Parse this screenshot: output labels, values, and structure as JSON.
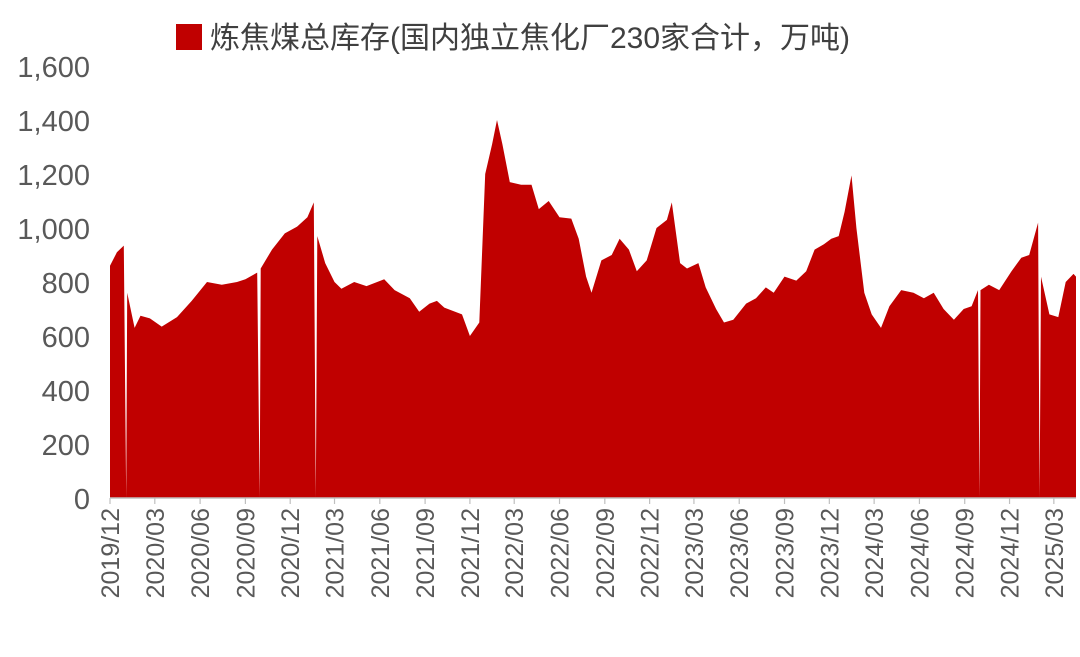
{
  "chart_data": {
    "type": "area",
    "title": "",
    "xlabel": "",
    "ylabel": "",
    "legend": {
      "position": "top-center"
    },
    "grid": false,
    "ylim": [
      0,
      1600
    ],
    "y_ticks": [
      "0",
      "200",
      "400",
      "600",
      "800",
      "1,000",
      "1,200",
      "1,400",
      "1,600"
    ],
    "x_ticks": [
      "2019/12",
      "2020/03",
      "2020/06",
      "2020/09",
      "2020/12",
      "2021/03",
      "2021/06",
      "2021/09",
      "2021/12",
      "2022/03",
      "2022/06",
      "2022/09",
      "2022/12",
      "2023/03",
      "2023/06",
      "2023/09",
      "2023/12",
      "2024/03",
      "2024/06",
      "2024/09",
      "2024/12",
      "2025/03"
    ],
    "x_range": [
      "2019-12-01",
      "2025-04-15"
    ],
    "series": [
      {
        "name": "炼焦煤总库存(国内独立焦化厂230家合计，万吨)",
        "color": "#C00000",
        "points": [
          [
            "2019-12-01",
            860
          ],
          [
            "2019-12-15",
            910
          ],
          [
            "2019-12-29",
            935
          ],
          [
            "2020-01-03",
            0
          ],
          [
            "2020-01-05",
            760
          ],
          [
            "2020-01-20",
            630
          ],
          [
            "2020-02-01",
            675
          ],
          [
            "2020-02-20",
            665
          ],
          [
            "2020-03-15",
            635
          ],
          [
            "2020-04-15",
            670
          ],
          [
            "2020-05-15",
            730
          ],
          [
            "2020-06-15",
            800
          ],
          [
            "2020-07-15",
            790
          ],
          [
            "2020-08-15",
            800
          ],
          [
            "2020-09-01",
            810
          ],
          [
            "2020-09-25",
            835
          ],
          [
            "2020-09-30",
            0
          ],
          [
            "2020-10-02",
            850
          ],
          [
            "2020-10-25",
            920
          ],
          [
            "2020-11-20",
            980
          ],
          [
            "2020-12-15",
            1005
          ],
          [
            "2021-01-05",
            1040
          ],
          [
            "2021-01-18",
            1095
          ],
          [
            "2021-01-22",
            0
          ],
          [
            "2021-01-25",
            970
          ],
          [
            "2021-02-10",
            870
          ],
          [
            "2021-03-01",
            800
          ],
          [
            "2021-03-15",
            775
          ],
          [
            "2021-04-10",
            800
          ],
          [
            "2021-05-05",
            785
          ],
          [
            "2021-06-10",
            810
          ],
          [
            "2021-07-01",
            770
          ],
          [
            "2021-08-01",
            740
          ],
          [
            "2021-08-20",
            690
          ],
          [
            "2021-09-10",
            720
          ],
          [
            "2021-09-25",
            730
          ],
          [
            "2021-10-10",
            705
          ],
          [
            "2021-11-15",
            680
          ],
          [
            "2021-12-01",
            600
          ],
          [
            "2021-12-20",
            650
          ],
          [
            "2022-01-01",
            1200
          ],
          [
            "2022-01-15",
            1310
          ],
          [
            "2022-01-25",
            1400
          ],
          [
            "2022-02-05",
            1310
          ],
          [
            "2022-02-20",
            1170
          ],
          [
            "2022-03-15",
            1160
          ],
          [
            "2022-04-05",
            1160
          ],
          [
            "2022-04-20",
            1070
          ],
          [
            "2022-05-10",
            1100
          ],
          [
            "2022-06-01",
            1040
          ],
          [
            "2022-06-25",
            1035
          ],
          [
            "2022-07-10",
            960
          ],
          [
            "2022-07-25",
            820
          ],
          [
            "2022-08-05",
            760
          ],
          [
            "2022-08-25",
            880
          ],
          [
            "2022-09-15",
            900
          ],
          [
            "2022-10-01",
            960
          ],
          [
            "2022-10-20",
            920
          ],
          [
            "2022-11-05",
            840
          ],
          [
            "2022-11-25",
            880
          ],
          [
            "2022-12-15",
            1000
          ],
          [
            "2023-01-05",
            1030
          ],
          [
            "2023-01-15",
            1095
          ],
          [
            "2023-02-01",
            870
          ],
          [
            "2023-02-15",
            850
          ],
          [
            "2023-03-10",
            870
          ],
          [
            "2023-03-25",
            780
          ],
          [
            "2023-04-15",
            700
          ],
          [
            "2023-05-01",
            650
          ],
          [
            "2023-05-20",
            660
          ],
          [
            "2023-06-15",
            720
          ],
          [
            "2023-07-05",
            740
          ],
          [
            "2023-07-25",
            780
          ],
          [
            "2023-08-10",
            760
          ],
          [
            "2023-09-01",
            820
          ],
          [
            "2023-09-25",
            805
          ],
          [
            "2023-10-15",
            840
          ],
          [
            "2023-11-01",
            920
          ],
          [
            "2023-11-20",
            940
          ],
          [
            "2023-12-05",
            960
          ],
          [
            "2023-12-20",
            970
          ],
          [
            "2024-01-01",
            1060
          ],
          [
            "2024-01-15",
            1195
          ],
          [
            "2024-01-25",
            1000
          ],
          [
            "2024-02-10",
            760
          ],
          [
            "2024-02-25",
            680
          ],
          [
            "2024-03-15",
            630
          ],
          [
            "2024-04-01",
            710
          ],
          [
            "2024-04-25",
            770
          ],
          [
            "2024-05-20",
            760
          ],
          [
            "2024-06-10",
            740
          ],
          [
            "2024-06-30",
            760
          ],
          [
            "2024-07-20",
            700
          ],
          [
            "2024-08-10",
            660
          ],
          [
            "2024-08-30",
            700
          ],
          [
            "2024-09-15",
            710
          ],
          [
            "2024-09-28",
            770
          ],
          [
            "2024-10-01",
            0
          ],
          [
            "2024-10-03",
            770
          ],
          [
            "2024-10-20",
            790
          ],
          [
            "2024-11-10",
            770
          ],
          [
            "2024-12-05",
            840
          ],
          [
            "2024-12-25",
            890
          ],
          [
            "2025-01-10",
            900
          ],
          [
            "2025-01-28",
            1020
          ],
          [
            "2025-01-31",
            0
          ],
          [
            "2025-02-03",
            820
          ],
          [
            "2025-02-20",
            680
          ],
          [
            "2025-03-10",
            670
          ],
          [
            "2025-03-25",
            800
          ],
          [
            "2025-04-10",
            830
          ],
          [
            "2025-04-15",
            820
          ]
        ]
      }
    ]
  }
}
